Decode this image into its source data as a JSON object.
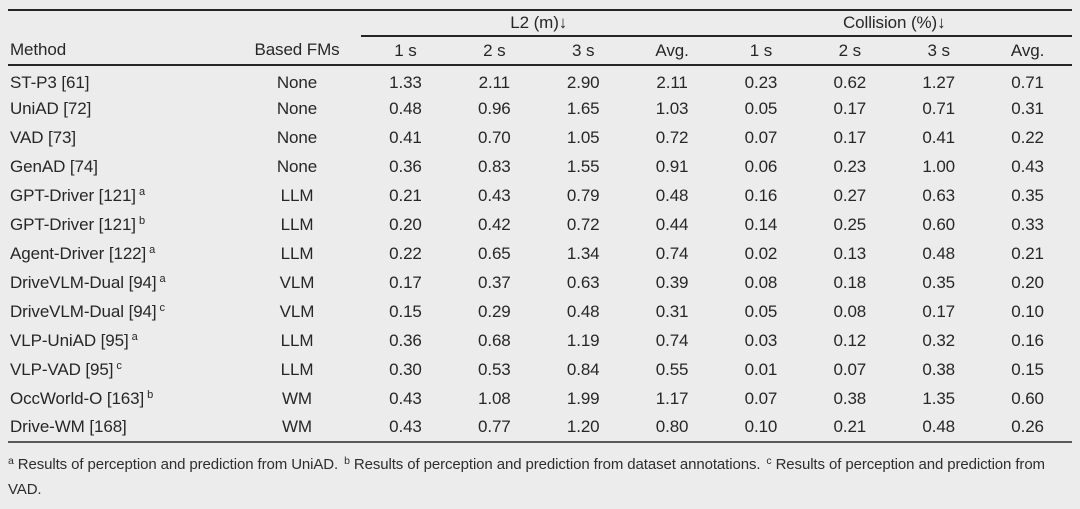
{
  "page": {
    "background": "#ececec",
    "text_color": "#272727",
    "rule_color": "#262626",
    "footer_rule_color": "#5a5a5a"
  },
  "table": {
    "groups": [
      "L2 (m)↓",
      "Collision (%)↓"
    ],
    "columns": [
      "Method",
      "Based FMs",
      "1 s",
      "2 s",
      "3 s",
      "Avg.",
      "1 s",
      "2 s",
      "3 s",
      "Avg."
    ],
    "rows": [
      {
        "method": "ST-P3 [61]",
        "sup": "",
        "fm": "None",
        "l2": [
          "1.33",
          "2.11",
          "2.90",
          "2.11"
        ],
        "col": [
          "0.23",
          "0.62",
          "1.27",
          "0.71"
        ]
      },
      {
        "method": "UniAD [72]",
        "sup": "",
        "fm": "None",
        "l2": [
          "0.48",
          "0.96",
          "1.65",
          "1.03"
        ],
        "col": [
          "0.05",
          "0.17",
          "0.71",
          "0.31"
        ]
      },
      {
        "method": "VAD [73]",
        "sup": "",
        "fm": "None",
        "l2": [
          "0.41",
          "0.70",
          "1.05",
          "0.72"
        ],
        "col": [
          "0.07",
          "0.17",
          "0.41",
          "0.22"
        ]
      },
      {
        "method": "GenAD [74]",
        "sup": "",
        "fm": "None",
        "l2": [
          "0.36",
          "0.83",
          "1.55",
          "0.91"
        ],
        "col": [
          "0.06",
          "0.23",
          "1.00",
          "0.43"
        ]
      },
      {
        "method": "GPT-Driver [121]",
        "sup": "a",
        "fm": "LLM",
        "l2": [
          "0.21",
          "0.43",
          "0.79",
          "0.48"
        ],
        "col": [
          "0.16",
          "0.27",
          "0.63",
          "0.35"
        ]
      },
      {
        "method": "GPT-Driver [121]",
        "sup": "b",
        "fm": "LLM",
        "l2": [
          "0.20",
          "0.42",
          "0.72",
          "0.44"
        ],
        "col": [
          "0.14",
          "0.25",
          "0.60",
          "0.33"
        ]
      },
      {
        "method": "Agent-Driver [122]",
        "sup": "a",
        "fm": "LLM",
        "l2": [
          "0.22",
          "0.65",
          "1.34",
          "0.74"
        ],
        "col": [
          "0.02",
          "0.13",
          "0.48",
          "0.21"
        ]
      },
      {
        "method": "DriveVLM-Dual [94]",
        "sup": "a",
        "fm": "VLM",
        "l2": [
          "0.17",
          "0.37",
          "0.63",
          "0.39"
        ],
        "col": [
          "0.08",
          "0.18",
          "0.35",
          "0.20"
        ]
      },
      {
        "method": "DriveVLM-Dual [94]",
        "sup": "c",
        "fm": "VLM",
        "l2": [
          "0.15",
          "0.29",
          "0.48",
          "0.31"
        ],
        "col": [
          "0.05",
          "0.08",
          "0.17",
          "0.10"
        ]
      },
      {
        "method": "VLP-UniAD [95]",
        "sup": "a",
        "fm": "LLM",
        "l2": [
          "0.36",
          "0.68",
          "1.19",
          "0.74"
        ],
        "col": [
          "0.03",
          "0.12",
          "0.32",
          "0.16"
        ]
      },
      {
        "method": "VLP-VAD [95]",
        "sup": "c",
        "fm": "LLM",
        "l2": [
          "0.30",
          "0.53",
          "0.84",
          "0.55"
        ],
        "col": [
          "0.01",
          "0.07",
          "0.38",
          "0.15"
        ]
      },
      {
        "method": "OccWorld-O [163]",
        "sup": "b",
        "fm": "WM",
        "l2": [
          "0.43",
          "1.08",
          "1.99",
          "1.17"
        ],
        "col": [
          "0.07",
          "0.38",
          "1.35",
          "0.60"
        ]
      },
      {
        "method": "Drive-WM [168]",
        "sup": "",
        "fm": "WM",
        "l2": [
          "0.43",
          "0.77",
          "1.20",
          "0.80"
        ],
        "col": [
          "0.10",
          "0.21",
          "0.48",
          "0.26"
        ]
      }
    ]
  },
  "footnotes": [
    {
      "marker": "a",
      "text": "Results of perception and prediction from UniAD."
    },
    {
      "marker": "b",
      "text": "Results of perception and prediction from dataset annotations."
    },
    {
      "marker": "c",
      "text": "Results of perception and prediction from VAD."
    }
  ]
}
